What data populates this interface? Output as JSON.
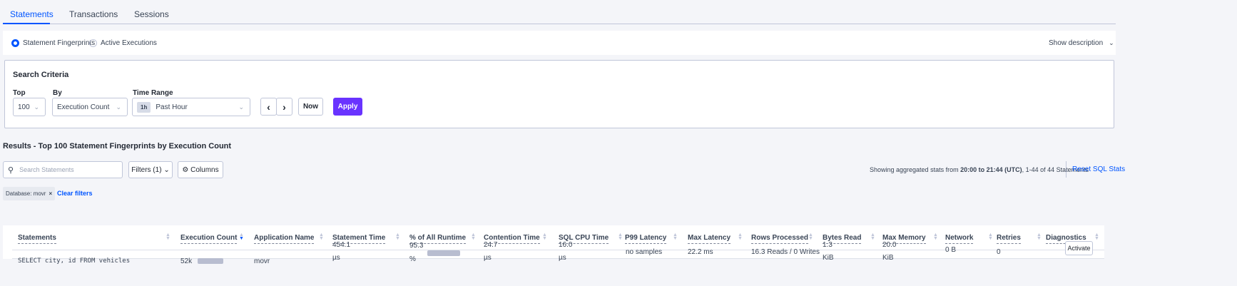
{
  "tabs": [
    {
      "label": "Statements",
      "active": true
    },
    {
      "label": "Transactions"
    },
    {
      "label": "Sessions"
    }
  ],
  "view_mode": {
    "options": [
      "Statement Fingerprints",
      "Active Executions"
    ],
    "selected": "Statement Fingerprints",
    "show_description": "Show description"
  },
  "search_criteria": {
    "title": "Search Criteria",
    "top_label": "Top",
    "top_value": "100",
    "by_label": "By",
    "by_value": "Execution Count",
    "time_range_label": "Time Range",
    "time_badge": "1h",
    "time_value": "Past Hour",
    "now_label": "Now",
    "apply_label": "Apply"
  },
  "results": {
    "title": "Results - Top 100 Statement Fingerprints by Execution Count",
    "search_placeholder": "Search Statements",
    "filters_label": "Filters (1)",
    "columns_label": "Columns",
    "stats_prefix": "Showing aggregated stats from ",
    "stats_range": "20:00 to 21:44 (UTC)",
    "stats_suffix": ", 1-44 of 44 Statements",
    "reset_label": "Reset SQL Stats",
    "filter_chip": "Database: movr",
    "clear_filters": "Clear filters"
  },
  "table": {
    "columns": [
      "Statements",
      "Execution Count",
      "Application Name",
      "Statement Time",
      "% of All Runtime",
      "Contention Time",
      "SQL CPU Time",
      "P99 Latency",
      "Max Latency",
      "Rows Processed",
      "Bytes Read",
      "Max Memory",
      "Network",
      "Retries",
      "Diagnostics"
    ],
    "sorted_column": "Execution Count",
    "rows": [
      {
        "statement": "SELECT city, id FROM vehicles",
        "execution_count": "52k",
        "application": "movr",
        "statement_time": "454.1",
        "statement_time_unit": "µs",
        "pct_runtime": "95.3",
        "pct_unit": "%",
        "contention": "24.7",
        "contention_unit": "µs",
        "cpu": "16.0",
        "cpu_unit": "µs",
        "p99": "no samples",
        "max_latency": "22.2 ms",
        "rows_processed": "16.3 Reads / 0 Writes",
        "bytes_read": "1.3",
        "bytes_read_unit": "KiB",
        "max_memory": "20.0",
        "max_memory_unit": "KiB",
        "network": "0 B",
        "retries": "0",
        "diagnostics": "Activate"
      }
    ]
  },
  "colors": {
    "accent": "#0055ff",
    "apply": "#6933ff",
    "bar": "#b8bdd0"
  }
}
